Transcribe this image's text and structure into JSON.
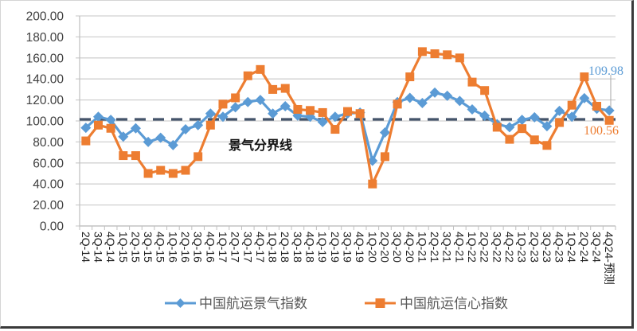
{
  "chart_data": {
    "type": "line",
    "title": "",
    "xlabel": "",
    "ylabel": "",
    "ylim": [
      0,
      200
    ],
    "yticks": [
      "0.00",
      "20.00",
      "40.00",
      "60.00",
      "80.00",
      "100.00",
      "120.00",
      "140.00",
      "160.00",
      "180.00",
      "200.00"
    ],
    "grid": true,
    "legend_position": "bottom",
    "categories": [
      "2Q-14",
      "3Q-14",
      "4Q-14",
      "1Q-15",
      "2Q-15",
      "3Q-15",
      "4Q-15",
      "1Q-16",
      "2Q-16",
      "3Q-16",
      "4Q-16",
      "1Q-17",
      "2Q-17",
      "3Q-17",
      "4Q-17",
      "1Q-18",
      "2Q-18",
      "3Q-18",
      "4Q-18",
      "1Q-19",
      "2Q-19",
      "3Q-19",
      "4Q-19",
      "1Q-20",
      "2Q-20",
      "3Q-20",
      "4Q-20",
      "1Q-21",
      "2Q-21",
      "3Q-21",
      "4Q-21",
      "1Q-22",
      "2Q-22",
      "3Q-22",
      "4Q-22",
      "1Q-23",
      "2Q-23",
      "3Q-23",
      "4Q-23",
      "1Q-24",
      "2Q-24",
      "3Q-24",
      "4Q24-预测"
    ],
    "series": [
      {
        "name": "中国航运景气指数",
        "color": "#5b9bd5",
        "marker": "diamond",
        "values": [
          93.5,
          104,
          101,
          85,
          93,
          80,
          84,
          77,
          92,
          96,
          107,
          104,
          113,
          118,
          120,
          107,
          114,
          105,
          104,
          99,
          104,
          107,
          108,
          62,
          89,
          118,
          122,
          117,
          127,
          124,
          119,
          111,
          105,
          97,
          94,
          101,
          103.5,
          95,
          109.6,
          104,
          121.7,
          111.6,
          109.98
        ]
      },
      {
        "name": "中国航运信心指数",
        "color": "#ed7d31",
        "marker": "square",
        "values": [
          81,
          96,
          93,
          67,
          67,
          50,
          53,
          50,
          53,
          66,
          96,
          116,
          122,
          143,
          149,
          130,
          131,
          111,
          110,
          108,
          92,
          109,
          107,
          40,
          66,
          116,
          142,
          166,
          164,
          163,
          160,
          137,
          129,
          94,
          82.5,
          92.7,
          82,
          76.7,
          98.5,
          115,
          142,
          114,
          100.56
        ]
      }
    ],
    "reference_line": {
      "label": "景气分界线",
      "value": 101.5,
      "color": "#44546a",
      "style": "dashed"
    },
    "annotations": [
      {
        "text": "109.98",
        "series": "中国航运景气指数",
        "color": "#5b9bd5"
      },
      {
        "text": "100.56",
        "series": "中国航运信心指数",
        "color": "#ed7d31"
      }
    ]
  },
  "legend": {
    "items": [
      {
        "label": "中国航运景气指数",
        "color": "#5b9bd5",
        "marker": "diamond"
      },
      {
        "label": "中国航运信心指数",
        "color": "#ed7d31",
        "marker": "square"
      }
    ]
  }
}
